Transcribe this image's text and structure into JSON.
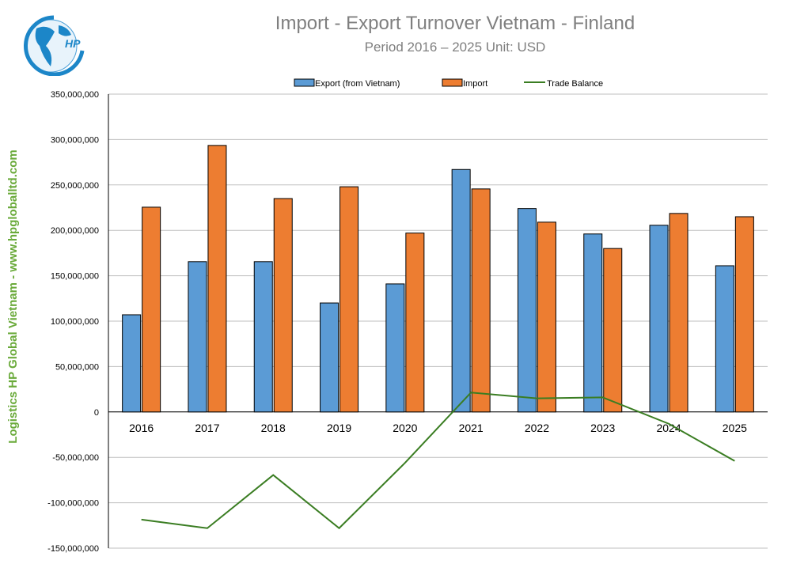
{
  "header": {
    "title": "Import - Export Turnover Vietnam - Finland",
    "subtitle": "Period 2016 – 2025  Unit: USD",
    "side_label": "Logistics HP Global Vietnam - www.hpgloballtd.com",
    "logo_text": "HP"
  },
  "chart_data": {
    "type": "bar",
    "title": "Import - Export Turnover Vietnam - Finland",
    "subtitle": "Period 2016 – 2025  Unit: USD",
    "categories": [
      "2016",
      "2017",
      "2018",
      "2019",
      "2020",
      "2021",
      "2022",
      "2023",
      "2024",
      "2025"
    ],
    "series": [
      {
        "name": "Export (from Vietnam)",
        "type": "bar",
        "color": "#5b9bd5",
        "values": [
          107000000,
          165500000,
          165500000,
          120000000,
          141000000,
          267000000,
          224000000,
          196000000,
          205600000,
          161000000
        ]
      },
      {
        "name": "Import",
        "type": "bar",
        "color": "#ed7d31",
        "values": [
          225500000,
          293500000,
          235000000,
          248000000,
          197000000,
          245600000,
          209000000,
          180000000,
          218600000,
          215000000
        ]
      },
      {
        "name": "Trade Balance",
        "type": "line",
        "color": "#3a7d22",
        "values": [
          -118500000,
          -128000000,
          -69500000,
          -128000000,
          -56000000,
          21400000,
          15000000,
          16000000,
          -13000000,
          -54000000
        ]
      }
    ],
    "ylim": [
      -150000000,
      350000000
    ],
    "yticks": [
      350000000,
      300000000,
      250000000,
      200000000,
      150000000,
      100000000,
      50000000,
      0,
      -50000000,
      -100000000,
      -150000000
    ],
    "ytick_labels": [
      "350,000,000",
      "300,000,000",
      "250,000,000",
      "200,000,000",
      "150,000,000",
      "100,000,000",
      "50,000,000",
      "0",
      "-50,000,000",
      "-100,000,000",
      "-150,000,000"
    ],
    "grid": true,
    "legend": "top"
  }
}
